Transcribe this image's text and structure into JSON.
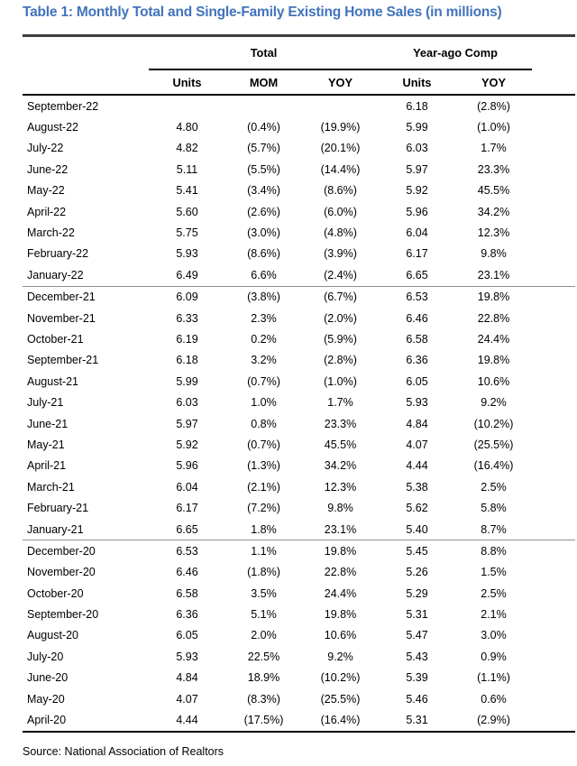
{
  "title": "Table 1: Monthly Total and Single-Family Existing Home Sales (in millions)",
  "colors": {
    "title_blue": "#4173bc",
    "rule_dark": "#3c3c3c",
    "rule_black": "#000000",
    "year_divider_gray": "#8f8f8f"
  },
  "table": {
    "groups": [
      {
        "label": "Total"
      },
      {
        "label": "Year-ago Comp"
      }
    ],
    "columns": [
      "Units",
      "MOM",
      "YOY",
      "Units",
      "YOY"
    ],
    "rows": [
      {
        "month": "September-22",
        "total_units": "",
        "total_mom": "",
        "total_yoy": "",
        "yearago_units": "6.18",
        "yearago_yoy": "(2.8%)"
      },
      {
        "month": "August-22",
        "total_units": "4.80",
        "total_mom": "(0.4%)",
        "total_yoy": "(19.9%)",
        "yearago_units": "5.99",
        "yearago_yoy": "(1.0%)"
      },
      {
        "month": "July-22",
        "total_units": "4.82",
        "total_mom": "(5.7%)",
        "total_yoy": "(20.1%)",
        "yearago_units": "6.03",
        "yearago_yoy": "1.7%"
      },
      {
        "month": "June-22",
        "total_units": "5.11",
        "total_mom": "(5.5%)",
        "total_yoy": "(14.4%)",
        "yearago_units": "5.97",
        "yearago_yoy": "23.3%"
      },
      {
        "month": "May-22",
        "total_units": "5.41",
        "total_mom": "(3.4%)",
        "total_yoy": "(8.6%)",
        "yearago_units": "5.92",
        "yearago_yoy": "45.5%"
      },
      {
        "month": "April-22",
        "total_units": "5.60",
        "total_mom": "(2.6%)",
        "total_yoy": "(6.0%)",
        "yearago_units": "5.96",
        "yearago_yoy": "34.2%"
      },
      {
        "month": "March-22",
        "total_units": "5.75",
        "total_mom": "(3.0%)",
        "total_yoy": "(4.8%)",
        "yearago_units": "6.04",
        "yearago_yoy": "12.3%"
      },
      {
        "month": "February-22",
        "total_units": "5.93",
        "total_mom": "(8.6%)",
        "total_yoy": "(3.9%)",
        "yearago_units": "6.17",
        "yearago_yoy": "9.8%"
      },
      {
        "month": "January-22",
        "total_units": "6.49",
        "total_mom": "6.6%",
        "total_yoy": "(2.4%)",
        "yearago_units": "6.65",
        "yearago_yoy": "23.1%",
        "year_divider_after": true
      },
      {
        "month": "December-21",
        "total_units": "6.09",
        "total_mom": "(3.8%)",
        "total_yoy": "(6.7%)",
        "yearago_units": "6.53",
        "yearago_yoy": "19.8%"
      },
      {
        "month": "November-21",
        "total_units": "6.33",
        "total_mom": "2.3%",
        "total_yoy": "(2.0%)",
        "yearago_units": "6.46",
        "yearago_yoy": "22.8%"
      },
      {
        "month": "October-21",
        "total_units": "6.19",
        "total_mom": "0.2%",
        "total_yoy": "(5.9%)",
        "yearago_units": "6.58",
        "yearago_yoy": "24.4%"
      },
      {
        "month": "September-21",
        "total_units": "6.18",
        "total_mom": "3.2%",
        "total_yoy": "(2.8%)",
        "yearago_units": "6.36",
        "yearago_yoy": "19.8%"
      },
      {
        "month": "August-21",
        "total_units": "5.99",
        "total_mom": "(0.7%)",
        "total_yoy": "(1.0%)",
        "yearago_units": "6.05",
        "yearago_yoy": "10.6%"
      },
      {
        "month": "July-21",
        "total_units": "6.03",
        "total_mom": "1.0%",
        "total_yoy": "1.7%",
        "yearago_units": "5.93",
        "yearago_yoy": "9.2%"
      },
      {
        "month": "June-21",
        "total_units": "5.97",
        "total_mom": "0.8%",
        "total_yoy": "23.3%",
        "yearago_units": "4.84",
        "yearago_yoy": "(10.2%)"
      },
      {
        "month": "May-21",
        "total_units": "5.92",
        "total_mom": "(0.7%)",
        "total_yoy": "45.5%",
        "yearago_units": "4.07",
        "yearago_yoy": "(25.5%)"
      },
      {
        "month": "April-21",
        "total_units": "5.96",
        "total_mom": "(1.3%)",
        "total_yoy": "34.2%",
        "yearago_units": "4.44",
        "yearago_yoy": "(16.4%)"
      },
      {
        "month": "March-21",
        "total_units": "6.04",
        "total_mom": "(2.1%)",
        "total_yoy": "12.3%",
        "yearago_units": "5.38",
        "yearago_yoy": "2.5%"
      },
      {
        "month": "February-21",
        "total_units": "6.17",
        "total_mom": "(7.2%)",
        "total_yoy": "9.8%",
        "yearago_units": "5.62",
        "yearago_yoy": "5.8%"
      },
      {
        "month": "January-21",
        "total_units": "6.65",
        "total_mom": "1.8%",
        "total_yoy": "23.1%",
        "yearago_units": "5.40",
        "yearago_yoy": "8.7%",
        "year_divider_after": true
      },
      {
        "month": "December-20",
        "total_units": "6.53",
        "total_mom": "1.1%",
        "total_yoy": "19.8%",
        "yearago_units": "5.45",
        "yearago_yoy": "8.8%"
      },
      {
        "month": "November-20",
        "total_units": "6.46",
        "total_mom": "(1.8%)",
        "total_yoy": "22.8%",
        "yearago_units": "5.26",
        "yearago_yoy": "1.5%"
      },
      {
        "month": "October-20",
        "total_units": "6.58",
        "total_mom": "3.5%",
        "total_yoy": "24.4%",
        "yearago_units": "5.29",
        "yearago_yoy": "2.5%"
      },
      {
        "month": "September-20",
        "total_units": "6.36",
        "total_mom": "5.1%",
        "total_yoy": "19.8%",
        "yearago_units": "5.31",
        "yearago_yoy": "2.1%"
      },
      {
        "month": "August-20",
        "total_units": "6.05",
        "total_mom": "2.0%",
        "total_yoy": "10.6%",
        "yearago_units": "5.47",
        "yearago_yoy": "3.0%"
      },
      {
        "month": "July-20",
        "total_units": "5.93",
        "total_mom": "22.5%",
        "total_yoy": "9.2%",
        "yearago_units": "5.43",
        "yearago_yoy": "0.9%"
      },
      {
        "month": "June-20",
        "total_units": "4.84",
        "total_mom": "18.9%",
        "total_yoy": "(10.2%)",
        "yearago_units": "5.39",
        "yearago_yoy": "(1.1%)"
      },
      {
        "month": "May-20",
        "total_units": "4.07",
        "total_mom": "(8.3%)",
        "total_yoy": "(25.5%)",
        "yearago_units": "5.46",
        "yearago_yoy": "0.6%"
      },
      {
        "month": "April-20",
        "total_units": "4.44",
        "total_mom": "(17.5%)",
        "total_yoy": "(16.4%)",
        "yearago_units": "5.31",
        "yearago_yoy": "(2.9%)"
      }
    ]
  },
  "source": "Source: National Association of Realtors"
}
